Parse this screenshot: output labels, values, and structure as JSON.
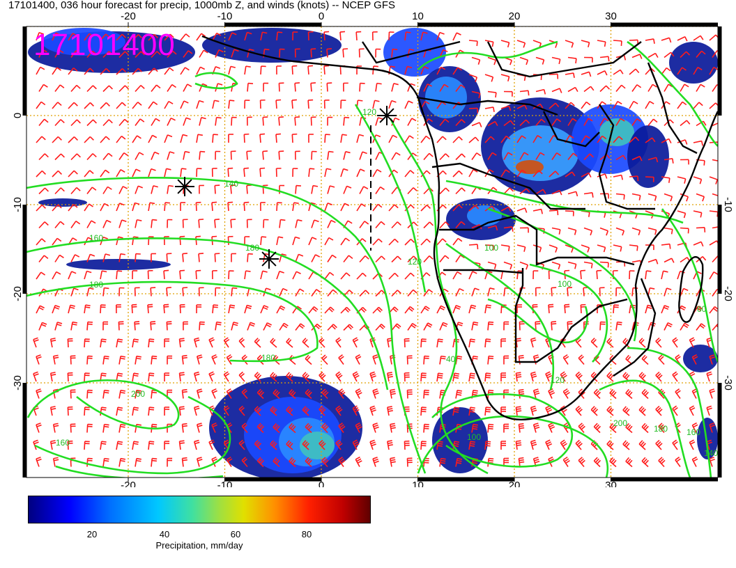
{
  "title": "17101400, 036 hour forecast for precip, 1000mb Z, and winds (knots) -- NCEP GFS",
  "stamp": "17101400",
  "axes": {
    "x_top_ticks": [
      "-20",
      "-10",
      "0",
      "10",
      "20",
      "30"
    ],
    "x_bottom_ticks": [
      "-20",
      "-10",
      "0",
      "10",
      "20",
      "30"
    ],
    "y_left_ticks": [
      "0",
      "-10",
      "-20",
      "-30"
    ],
    "y_right_ticks": [
      "-10",
      "-20",
      "-30"
    ]
  },
  "contour_labels": [
    "140",
    "160",
    "180",
    "180",
    "200",
    "160",
    "120",
    "100",
    "120",
    "180",
    "200",
    "180",
    "160",
    "140",
    "60",
    "40",
    "120",
    "100",
    "100"
  ],
  "colorbar": {
    "ticks": [
      "20",
      "40",
      "60",
      "80"
    ],
    "label": "Precipitation, mm/day"
  },
  "colors": {
    "contour": "#22dd22",
    "barb": "#ff1a1a",
    "grid": "#e0a000",
    "coast": "#000000",
    "stamp": "#ff00ff"
  }
}
